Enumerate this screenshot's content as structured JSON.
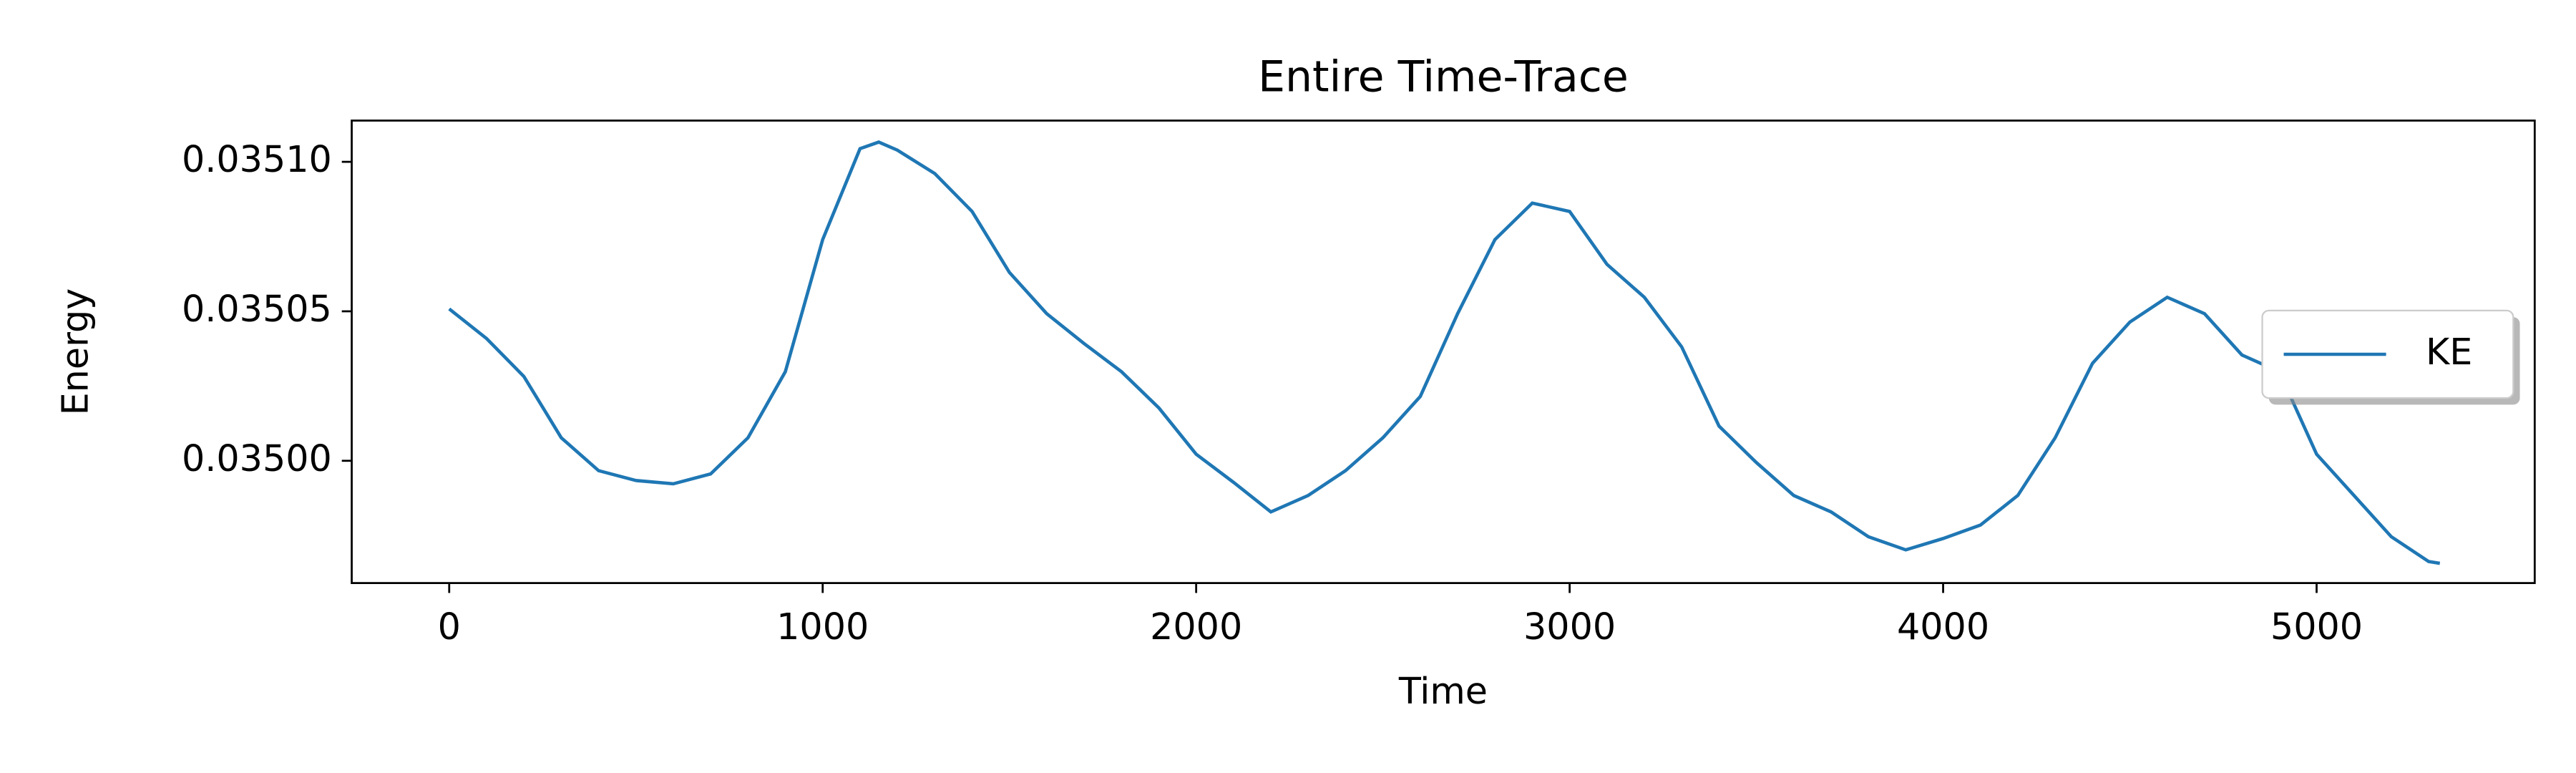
{
  "chart_data": {
    "type": "line",
    "title": "Entire Time-Trace",
    "x_label": "Time",
    "y_label": "Energy",
    "x": [
      0,
      100,
      200,
      300,
      400,
      500,
      600,
      700,
      800,
      900,
      1000,
      1100,
      1150,
      1200,
      1300,
      1400,
      1500,
      1600,
      1700,
      1800,
      1900,
      2000,
      2100,
      2200,
      2300,
      2400,
      2500,
      2600,
      2700,
      2800,
      2900,
      3000,
      3100,
      3200,
      3300,
      3400,
      3500,
      3600,
      3700,
      3800,
      3900,
      4000,
      4100,
      4200,
      4300,
      4400,
      4500,
      4600,
      4700,
      4800,
      4900,
      5000,
      5100,
      5200,
      5300,
      5330
    ],
    "series": [
      {
        "name": "KE",
        "color": "#1f77b4",
        "values": [
          0.0350508,
          0.0350409,
          0.0350282,
          0.0350077,
          0.0349967,
          0.0349934,
          0.0349923,
          0.0349956,
          0.0350077,
          0.0350298,
          0.035074,
          0.0351044,
          0.0351066,
          0.0351039,
          0.0350961,
          0.0350834,
          0.035063,
          0.0350492,
          0.0350392,
          0.0350298,
          0.0350177,
          0.0350022,
          0.0349928,
          0.0349829,
          0.0349884,
          0.0349967,
          0.0350077,
          0.0350215,
          0.0350492,
          0.035074,
          0.0350862,
          0.0350834,
          0.0350657,
          0.0350547,
          0.0350381,
          0.0350116,
          0.0349994,
          0.0349884,
          0.0349829,
          0.0349746,
          0.0349702,
          0.034974,
          0.0349785,
          0.0349884,
          0.0350077,
          0.0350326,
          0.0350464,
          0.0350547,
          0.0350492,
          0.0350354,
          0.0350298,
          0.0350022,
          0.0349884,
          0.0349746,
          0.0349663,
          0.0349657
        ]
      }
    ],
    "xlim": [
      -261,
      5584
    ],
    "xticks": [
      0,
      1000,
      2000,
      3000,
      4000,
      5000
    ],
    "ylim": [
      0.0349591,
      0.0351138
    ],
    "yticks": [
      {
        "value": 0.035,
        "label": "0.03500"
      },
      {
        "value": 0.03505,
        "label": "0.03505"
      },
      {
        "value": 0.0351,
        "label": "0.03510"
      }
    ],
    "legend": "center right",
    "grid": false
  }
}
